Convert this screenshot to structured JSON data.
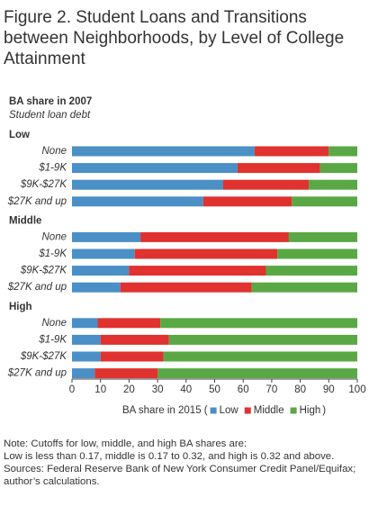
{
  "chart_data": {
    "type": "stacked-bar-horizontal",
    "title": "Figure 2. Student Loans and Transitions between Neighborhoods, by Level of College Attainment",
    "ylabel": "BA share in 2007",
    "ysubtitle": "Student loan debt",
    "groups": [
      {
        "name": "Low",
        "categories": [
          "None",
          "$1-9K",
          "$9K-$27K",
          "$27K and up"
        ]
      },
      {
        "name": "Middle",
        "categories": [
          "None",
          "$1-9K",
          "$9K-$27K",
          "$27K and up"
        ]
      },
      {
        "name": "High",
        "categories": [
          "None",
          "$1-9K",
          "$9K-$27K",
          "$27K and up"
        ]
      }
    ],
    "series": [
      {
        "name": "Low",
        "color": "#4a8fc6",
        "values": [
          64,
          58,
          53,
          46,
          24,
          22,
          20,
          17,
          9,
          10,
          10,
          8
        ]
      },
      {
        "name": "Middle",
        "color": "#e0322f",
        "values": [
          26,
          29,
          30,
          31,
          52,
          50,
          48,
          46,
          22,
          24,
          22,
          22
        ]
      },
      {
        "name": "High",
        "color": "#5aa845",
        "values": [
          10,
          13,
          17,
          23,
          24,
          28,
          32,
          37,
          69,
          66,
          68,
          70
        ]
      }
    ],
    "xlim": [
      0,
      100
    ],
    "xticks": [
      0,
      10,
      20,
      30,
      40,
      50,
      60,
      70,
      80,
      90,
      100
    ],
    "xlabel": "BA share in 2015 (",
    "xlabel_end": ")",
    "notes": [
      "Note: Cutoffs for low, middle, and high BA shares are:",
      "Low is less than 0.17, middle is 0.17 to 0.32, and high is 0.32 and above.",
      "Sources: Federal Reserve Bank of New York Consumer Credit Panel/Equifax; author’s calculations."
    ]
  }
}
